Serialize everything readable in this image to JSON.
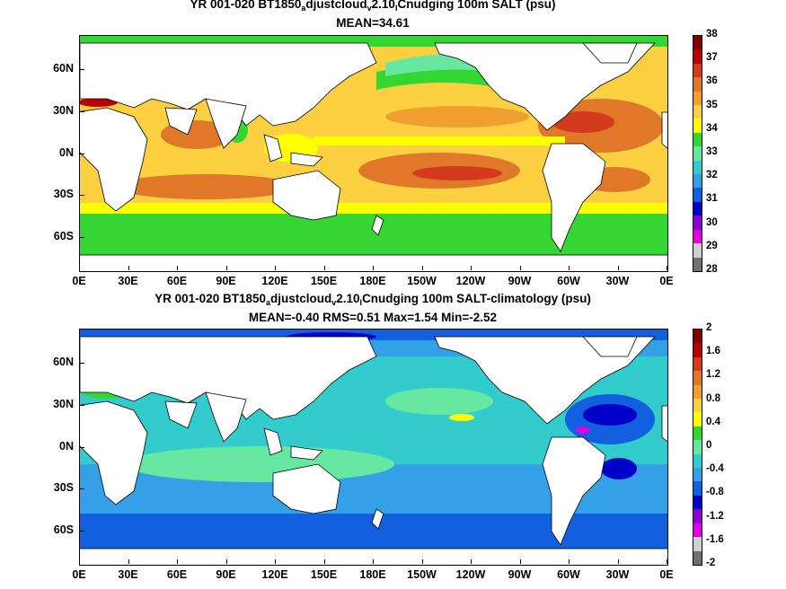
{
  "top_panel": {
    "title_part1": "YR 001-020 BT1850",
    "title_sub1": "a",
    "title_part2": "djustcloud",
    "title_sub2": "v",
    "title_part3": "2.10",
    "title_sub3": "I",
    "title_part4": "Cnudging 100m SALT (psu)",
    "stats": "MEAN=34.61",
    "colorbar_labels": [
      "38",
      "37",
      "36",
      "35",
      "34",
      "33",
      "32",
      "31",
      "30",
      "29",
      "28"
    ],
    "colorbar_colors": [
      "#800000",
      "#b80000",
      "#d43a1e",
      "#e0782a",
      "#f0a030",
      "#fcd040",
      "#ffff00",
      "#33d633",
      "#66e8a0",
      "#33cccc",
      "#33a0e8",
      "#1060e0",
      "#0000c8",
      "#8800d0",
      "#e000e0",
      "#d0d0d0",
      "#707070"
    ]
  },
  "bottom_panel": {
    "title_part1": "YR 001-020 BT1850",
    "title_sub1": "a",
    "title_part2": "djustcloud",
    "title_sub2": "v",
    "title_part3": "2.10",
    "title_sub3": "I",
    "title_part4": "Cnudging 100m SALT-climatology (psu)",
    "stats": "MEAN=-0.40   RMS=0.51   Max=1.54   Min=-2.52",
    "colorbar_labels": [
      "2",
      "1.6",
      "1.2",
      "0.8",
      "0.4",
      "0",
      "-0.4",
      "-0.8",
      "-1.2",
      "-1.6",
      "-2"
    ],
    "colorbar_colors": [
      "#800000",
      "#b80000",
      "#d43a1e",
      "#e0782a",
      "#f0a030",
      "#fcd040",
      "#ffff00",
      "#33d633",
      "#66e8a0",
      "#33cccc",
      "#33a0e8",
      "#1060e0",
      "#0000c8",
      "#8800d0",
      "#e000e0",
      "#d0d0d0",
      "#707070"
    ]
  },
  "lon_labels": [
    "0E",
    "30E",
    "60E",
    "90E",
    "120E",
    "150E",
    "180E",
    "150W",
    "120W",
    "90W",
    "60W",
    "30W",
    "0E"
  ],
  "lat_labels": [
    "60N",
    "30N",
    "0N",
    "30S",
    "60S"
  ]
}
